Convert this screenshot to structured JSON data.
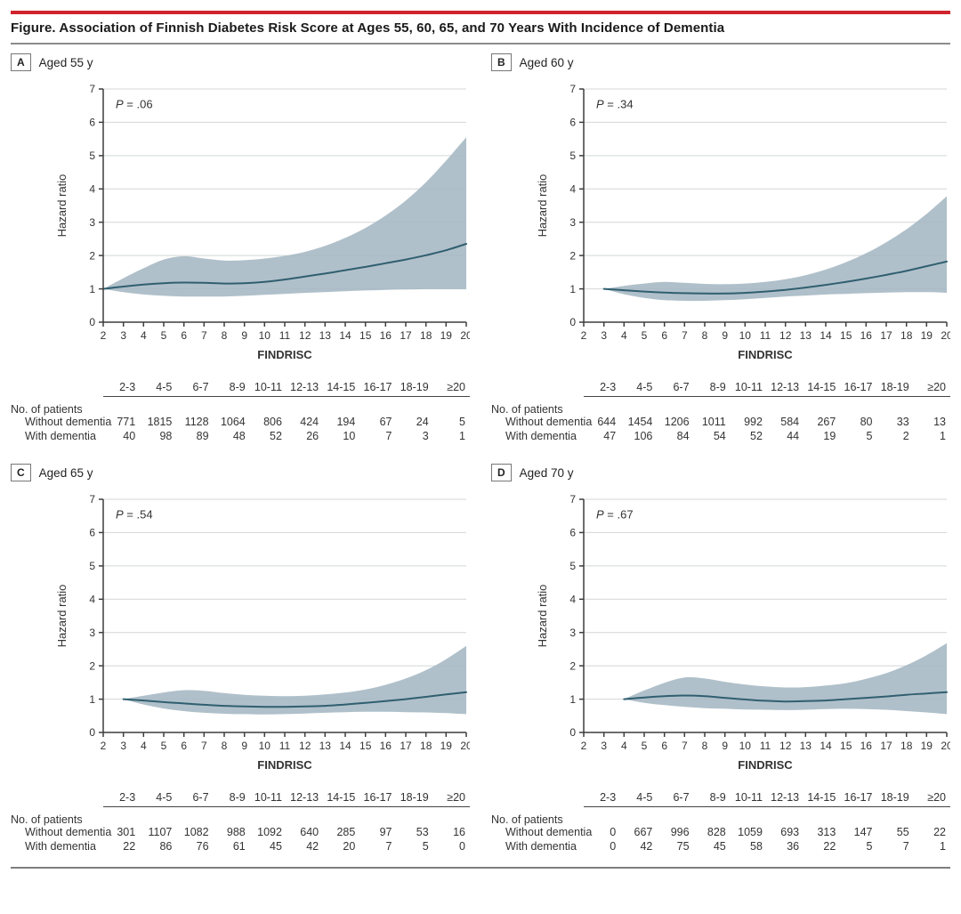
{
  "page": {
    "title": "Figure. Association of Finnish Diabetes Risk Score at Ages 55, 60, 65, and 70 Years With Incidence of Dementia",
    "accent_color": "#d0232e",
    "rule_color": "#8c8c8c"
  },
  "table_meta": {
    "group_label": "No. of patients",
    "row_labels": [
      "Without dementia",
      "With dementia"
    ],
    "bins": [
      "2-3",
      "4-5",
      "6-7",
      "8-9",
      "10-11",
      "12-13",
      "14-15",
      "16-17",
      "18-19",
      "≥20"
    ]
  },
  "panels": [
    {
      "letter": "A",
      "label": "Aged 55 y",
      "p_annotation": "P = .06",
      "counts": {
        "without": [
          771,
          1815,
          1128,
          1064,
          806,
          424,
          194,
          67,
          24,
          5
        ],
        "with": [
          40,
          98,
          89,
          48,
          52,
          26,
          10,
          7,
          3,
          1
        ]
      }
    },
    {
      "letter": "B",
      "label": "Aged 60 y",
      "p_annotation": "P = .34",
      "counts": {
        "without": [
          644,
          1454,
          1206,
          1011,
          992,
          584,
          267,
          80,
          33,
          13
        ],
        "with": [
          47,
          106,
          84,
          54,
          52,
          44,
          19,
          5,
          2,
          1
        ]
      }
    },
    {
      "letter": "C",
      "label": "Aged 65 y",
      "p_annotation": "P = .54",
      "counts": {
        "without": [
          301,
          1107,
          1082,
          988,
          1092,
          640,
          285,
          97,
          53,
          16
        ],
        "with": [
          22,
          86,
          76,
          61,
          45,
          42,
          20,
          7,
          5,
          0
        ]
      }
    },
    {
      "letter": "D",
      "label": "Aged 70 y",
      "p_annotation": "P = .67",
      "counts": {
        "without": [
          0,
          667,
          996,
          828,
          1059,
          693,
          313,
          147,
          55,
          22
        ],
        "with": [
          0,
          42,
          75,
          45,
          58,
          36,
          22,
          5,
          7,
          1
        ]
      }
    }
  ],
  "chart_data": [
    {
      "type": "line",
      "panel": "A",
      "title": "Aged 55 y",
      "p_annotation": "P = .06",
      "xlabel": "FINDRISC",
      "ylabel": "Hazard ratio",
      "xlim": [
        2,
        20
      ],
      "ylim": [
        0,
        7
      ],
      "xticks": [
        2,
        3,
        4,
        5,
        6,
        7,
        8,
        9,
        10,
        11,
        12,
        13,
        14,
        15,
        16,
        17,
        18,
        19,
        20
      ],
      "yticks": [
        0,
        1,
        2,
        3,
        4,
        5,
        6,
        7
      ],
      "grid": true,
      "legend": false,
      "x": [
        2,
        3,
        4,
        5,
        6,
        7,
        8,
        9,
        10,
        11,
        12,
        13,
        14,
        15,
        16,
        17,
        18,
        19,
        20
      ],
      "series": [
        {
          "name": "hazard-ratio",
          "values": [
            1.0,
            1.07,
            1.13,
            1.17,
            1.19,
            1.18,
            1.16,
            1.17,
            1.21,
            1.28,
            1.37,
            1.46,
            1.56,
            1.66,
            1.77,
            1.88,
            2.01,
            2.16,
            2.35
          ]
        },
        {
          "name": "ci-upper",
          "values": [
            1.0,
            1.32,
            1.62,
            1.88,
            1.98,
            1.91,
            1.85,
            1.86,
            1.91,
            1.99,
            2.11,
            2.29,
            2.53,
            2.83,
            3.2,
            3.65,
            4.2,
            4.85,
            5.55
          ]
        },
        {
          "name": "ci-lower",
          "values": [
            1.0,
            0.9,
            0.83,
            0.79,
            0.77,
            0.77,
            0.77,
            0.79,
            0.82,
            0.85,
            0.88,
            0.9,
            0.93,
            0.95,
            0.97,
            0.98,
            0.99,
            0.99,
            0.99
          ]
        }
      ],
      "band_color": "#a5b7c3",
      "line_color": "#305f70"
    },
    {
      "type": "line",
      "panel": "B",
      "title": "Aged 60 y",
      "p_annotation": "P = .34",
      "xlabel": "FINDRISC",
      "ylabel": "Hazard ratio",
      "xlim": [
        2,
        20
      ],
      "ylim": [
        0,
        7
      ],
      "xticks": [
        2,
        3,
        4,
        5,
        6,
        7,
        8,
        9,
        10,
        11,
        12,
        13,
        14,
        15,
        16,
        17,
        18,
        19,
        20
      ],
      "yticks": [
        0,
        1,
        2,
        3,
        4,
        5,
        6,
        7
      ],
      "grid": true,
      "legend": false,
      "x": [
        3,
        4,
        5,
        6,
        7,
        8,
        9,
        10,
        11,
        12,
        13,
        14,
        15,
        16,
        17,
        18,
        19,
        20
      ],
      "series": [
        {
          "name": "hazard-ratio",
          "values": [
            1.0,
            0.96,
            0.92,
            0.89,
            0.87,
            0.86,
            0.86,
            0.88,
            0.92,
            0.97,
            1.04,
            1.12,
            1.21,
            1.31,
            1.42,
            1.54,
            1.68,
            1.82
          ]
        },
        {
          "name": "ci-upper",
          "values": [
            1.0,
            1.09,
            1.16,
            1.21,
            1.18,
            1.15,
            1.14,
            1.16,
            1.21,
            1.29,
            1.41,
            1.58,
            1.8,
            2.07,
            2.4,
            2.79,
            3.25,
            3.78
          ]
        },
        {
          "name": "ci-lower",
          "values": [
            1.0,
            0.84,
            0.73,
            0.66,
            0.64,
            0.64,
            0.66,
            0.69,
            0.73,
            0.77,
            0.8,
            0.83,
            0.85,
            0.87,
            0.89,
            0.9,
            0.9,
            0.88
          ]
        }
      ],
      "band_color": "#a5b7c3",
      "line_color": "#305f70"
    },
    {
      "type": "line",
      "panel": "C",
      "title": "Aged 65 y",
      "p_annotation": "P = .54",
      "xlabel": "FINDRISC",
      "ylabel": "Hazard ratio",
      "xlim": [
        2,
        20
      ],
      "ylim": [
        0,
        7
      ],
      "xticks": [
        2,
        3,
        4,
        5,
        6,
        7,
        8,
        9,
        10,
        11,
        12,
        13,
        14,
        15,
        16,
        17,
        18,
        19,
        20
      ],
      "yticks": [
        0,
        1,
        2,
        3,
        4,
        5,
        6,
        7
      ],
      "grid": true,
      "legend": false,
      "x": [
        3,
        4,
        5,
        6,
        7,
        8,
        9,
        10,
        11,
        12,
        13,
        14,
        15,
        16,
        17,
        18,
        19,
        20
      ],
      "series": [
        {
          "name": "hazard-ratio",
          "values": [
            1.0,
            0.96,
            0.91,
            0.87,
            0.83,
            0.8,
            0.78,
            0.77,
            0.77,
            0.78,
            0.8,
            0.84,
            0.89,
            0.94,
            1.0,
            1.07,
            1.14,
            1.21
          ]
        },
        {
          "name": "ci-upper",
          "values": [
            1.0,
            1.1,
            1.2,
            1.27,
            1.25,
            1.18,
            1.13,
            1.1,
            1.09,
            1.1,
            1.14,
            1.2,
            1.29,
            1.43,
            1.62,
            1.87,
            2.2,
            2.6
          ]
        },
        {
          "name": "ci-lower",
          "values": [
            1.0,
            0.84,
            0.72,
            0.64,
            0.59,
            0.56,
            0.55,
            0.54,
            0.55,
            0.57,
            0.59,
            0.61,
            0.62,
            0.62,
            0.61,
            0.6,
            0.58,
            0.55
          ]
        }
      ],
      "band_color": "#a5b7c3",
      "line_color": "#305f70"
    },
    {
      "type": "line",
      "panel": "D",
      "title": "Aged 70 y",
      "p_annotation": "P = .67",
      "xlabel": "FINDRISC",
      "ylabel": "Hazard ratio",
      "xlim": [
        2,
        20
      ],
      "ylim": [
        0,
        7
      ],
      "xticks": [
        2,
        3,
        4,
        5,
        6,
        7,
        8,
        9,
        10,
        11,
        12,
        13,
        14,
        15,
        16,
        17,
        18,
        19,
        20
      ],
      "yticks": [
        0,
        1,
        2,
        3,
        4,
        5,
        6,
        7
      ],
      "grid": true,
      "legend": false,
      "x": [
        4,
        5,
        6,
        7,
        8,
        9,
        10,
        11,
        12,
        13,
        14,
        15,
        16,
        17,
        18,
        19,
        20
      ],
      "series": [
        {
          "name": "hazard-ratio",
          "values": [
            1.0,
            1.05,
            1.09,
            1.11,
            1.09,
            1.04,
            0.99,
            0.95,
            0.93,
            0.94,
            0.96,
            1.0,
            1.04,
            1.08,
            1.13,
            1.17,
            1.21
          ]
        },
        {
          "name": "ci-upper",
          "values": [
            1.0,
            1.26,
            1.49,
            1.65,
            1.62,
            1.52,
            1.44,
            1.38,
            1.35,
            1.36,
            1.41,
            1.48,
            1.61,
            1.78,
            2.02,
            2.32,
            2.68
          ]
        },
        {
          "name": "ci-lower",
          "values": [
            1.0,
            0.89,
            0.82,
            0.77,
            0.73,
            0.71,
            0.69,
            0.68,
            0.67,
            0.68,
            0.7,
            0.71,
            0.7,
            0.68,
            0.64,
            0.6,
            0.55
          ]
        }
      ],
      "band_color": "#a5b7c3",
      "line_color": "#305f70"
    }
  ],
  "style": {
    "grid_color": "#d2d6d8",
    "axis_color": "#3d3d3d",
    "tick_text_color": "#333333"
  }
}
